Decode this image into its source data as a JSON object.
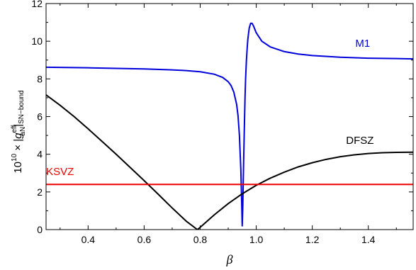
{
  "chart_data": {
    "type": "line",
    "title": "",
    "xlabel": "β",
    "ylabel": {
      "prefix": "10",
      "prefix_exp": "10",
      "times": "×",
      "symbol": "g",
      "symbol_sup": "eff",
      "symbol_sub": "aN",
      "bound": "SN−bound"
    },
    "xlim": [
      0.25,
      1.56
    ],
    "ylim": [
      0,
      12
    ],
    "xticks": [
      0.4,
      0.6,
      0.8,
      1.0,
      1.2,
      1.4
    ],
    "xtick_labels": [
      "0.4",
      "0.6",
      "0.8",
      "1.0",
      "1.2",
      "1.4"
    ],
    "yticks": [
      0,
      2,
      4,
      6,
      8,
      10,
      12
    ],
    "ytick_labels": [
      "0",
      "2",
      "4",
      "6",
      "8",
      "10",
      "12"
    ],
    "grid": false,
    "legend": "none",
    "series": [
      {
        "name": "M1",
        "color": "#0000dd",
        "x": [
          0.25,
          0.3,
          0.4,
          0.5,
          0.6,
          0.7,
          0.75,
          0.8,
          0.85,
          0.88,
          0.9,
          0.91,
          0.92,
          0.93,
          0.935,
          0.94,
          0.945,
          0.948,
          0.95,
          0.952,
          0.955,
          0.958,
          0.96,
          0.962,
          0.965,
          0.968,
          0.97,
          0.975,
          0.98,
          0.985,
          0.99,
          1.0,
          1.02,
          1.05,
          1.1,
          1.15,
          1.2,
          1.3,
          1.4,
          1.5,
          1.56
        ],
        "y": [
          8.62,
          8.61,
          8.59,
          8.56,
          8.53,
          8.48,
          8.44,
          8.38,
          8.25,
          8.08,
          7.85,
          7.65,
          7.3,
          6.65,
          6.05,
          5.0,
          3.2,
          1.5,
          0.2,
          1.2,
          3.6,
          5.7,
          7.0,
          8.0,
          9.0,
          9.7,
          10.1,
          10.7,
          10.95,
          10.95,
          10.82,
          10.45,
          10.0,
          9.7,
          9.45,
          9.32,
          9.24,
          9.15,
          9.1,
          9.08,
          9.06
        ]
      },
      {
        "name": "DFSZ",
        "color": "#000000",
        "x": [
          0.25,
          0.3,
          0.35,
          0.4,
          0.45,
          0.5,
          0.55,
          0.6,
          0.65,
          0.7,
          0.75,
          0.79,
          0.8,
          0.85,
          0.9,
          0.95,
          1.0,
          1.05,
          1.1,
          1.15,
          1.2,
          1.25,
          1.3,
          1.35,
          1.4,
          1.45,
          1.5,
          1.56
        ],
        "y": [
          7.15,
          6.6,
          6.0,
          5.35,
          4.68,
          4.0,
          3.3,
          2.6,
          1.88,
          1.15,
          0.45,
          0.0,
          0.12,
          0.78,
          1.38,
          1.9,
          2.35,
          2.73,
          3.05,
          3.33,
          3.55,
          3.73,
          3.87,
          3.97,
          4.04,
          4.08,
          4.1,
          4.11
        ]
      },
      {
        "name": "KSVZ",
        "color": "#ee0000",
        "x": [
          0.25,
          1.56
        ],
        "y": [
          2.4,
          2.4
        ]
      }
    ]
  }
}
